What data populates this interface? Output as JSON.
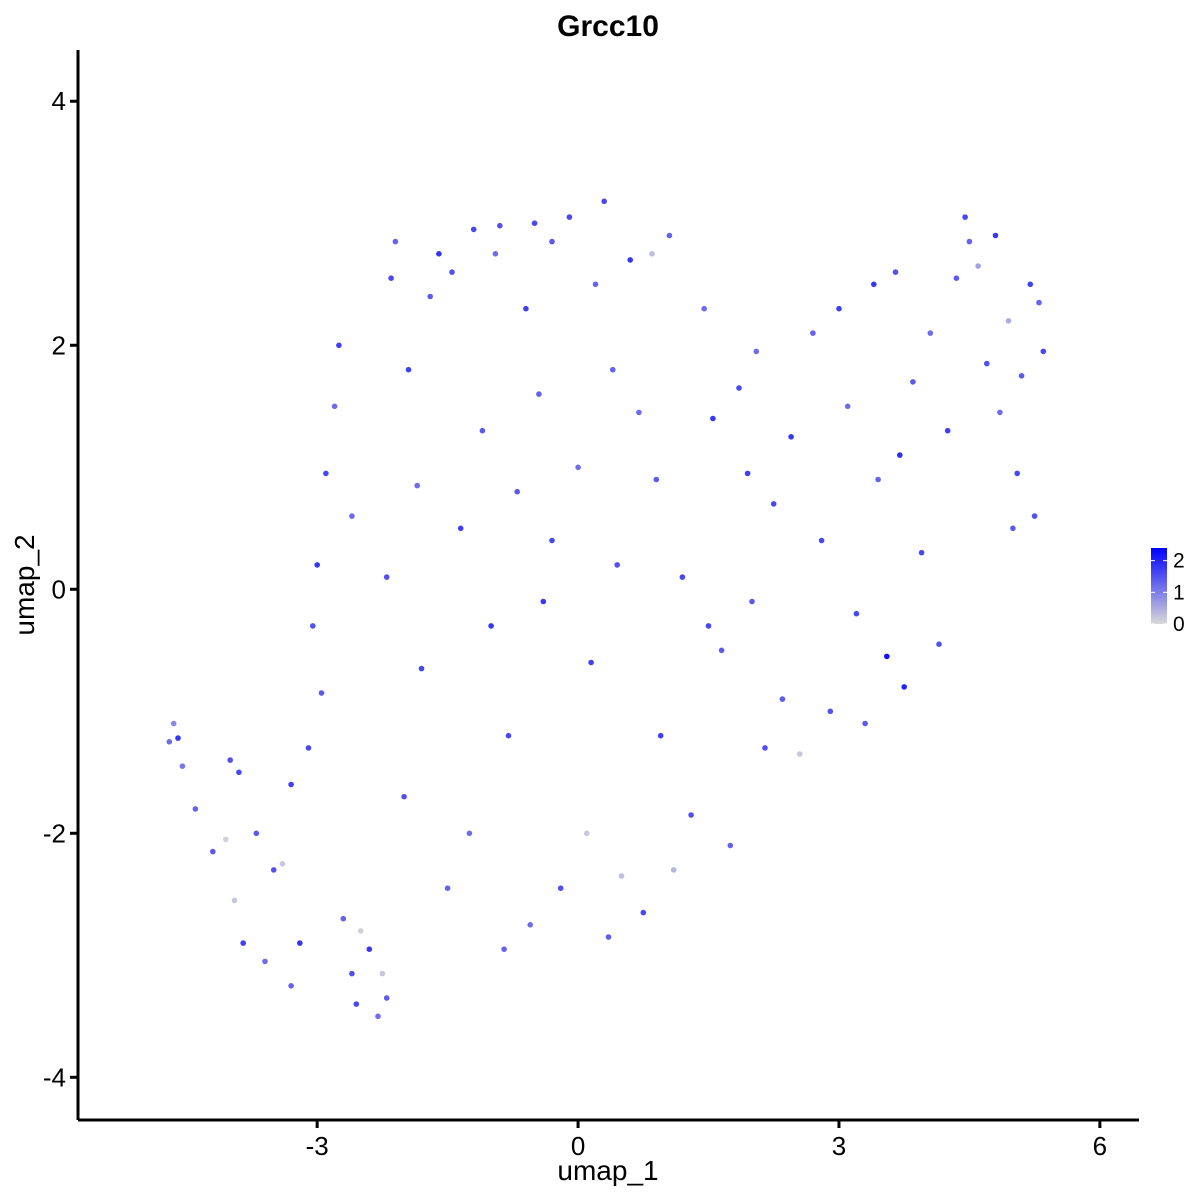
{
  "chart_data": {
    "type": "scatter",
    "title": "Grcc10",
    "xlabel": "umap_1",
    "ylabel": "umap_2",
    "xlim": [
      -5.75,
      6.45
    ],
    "ylim": [
      -4.35,
      4.42
    ],
    "x_ticks": [
      -3,
      0,
      3,
      6
    ],
    "y_ticks": [
      -4,
      -2,
      0,
      2,
      4
    ],
    "x_tick_labels": [
      "-3",
      "0",
      "3",
      "6"
    ],
    "y_tick_labels": [
      "-4",
      "-2",
      "0",
      "2",
      "4"
    ],
    "grid": false,
    "legend": {
      "placement": "right",
      "type": "colorbar",
      "range": [
        0,
        2.4
      ],
      "ticks": [
        0,
        1,
        2
      ],
      "labels": [
        "0",
        "1",
        "2"
      ],
      "colors": {
        "low": "#d9d9d9",
        "high": "#0000ff"
      }
    },
    "point_color_variable": "expression",
    "points_note_values": "approximate coordinates (umap_1, umap_2, expression)",
    "points": [
      [
        -4.7,
        -1.25,
        1.2
      ],
      [
        -4.65,
        -1.1,
        0.9
      ],
      [
        -4.6,
        -1.22,
        1.8
      ],
      [
        -4.55,
        -1.45,
        1.1
      ],
      [
        -4.4,
        -1.8,
        1.3
      ],
      [
        -4.2,
        -2.15,
        1.4
      ],
      [
        -4.05,
        -2.05,
        0.1
      ],
      [
        -3.95,
        -2.55,
        0.2
      ],
      [
        -3.9,
        -1.5,
        1.6
      ],
      [
        -3.85,
        -2.9,
        1.7
      ],
      [
        -3.6,
        -3.05,
        1.2
      ],
      [
        -3.5,
        -2.3,
        1.5
      ],
      [
        -3.4,
        -2.25,
        0.2
      ],
      [
        -3.3,
        -3.25,
        1.3
      ],
      [
        -3.2,
        -2.9,
        1.8
      ],
      [
        -3.1,
        -1.3,
        1.6
      ],
      [
        -3.05,
        -0.3,
        1.5
      ],
      [
        -3.0,
        0.2,
        1.8
      ],
      [
        -2.95,
        -0.85,
        1.4
      ],
      [
        -2.9,
        0.95,
        1.6
      ],
      [
        -2.8,
        1.5,
        1.2
      ],
      [
        -2.75,
        2.0,
        1.7
      ],
      [
        -2.7,
        -2.7,
        1.3
      ],
      [
        -2.6,
        -3.15,
        1.5
      ],
      [
        -2.55,
        -3.4,
        1.6
      ],
      [
        -2.5,
        -2.8,
        0.1
      ],
      [
        -2.4,
        -2.95,
        1.8
      ],
      [
        -2.3,
        -3.5,
        1.2
      ],
      [
        -2.25,
        -3.15,
        0.2
      ],
      [
        -2.2,
        -3.35,
        1.4
      ],
      [
        -2.15,
        2.55,
        1.6
      ],
      [
        -2.1,
        2.85,
        1.3
      ],
      [
        -2.0,
        -1.7,
        1.5
      ],
      [
        -1.95,
        1.8,
        1.7
      ],
      [
        -1.85,
        0.85,
        1.2
      ],
      [
        -1.8,
        -0.65,
        1.6
      ],
      [
        -1.7,
        2.4,
        1.4
      ],
      [
        -1.6,
        2.75,
        1.8
      ],
      [
        -1.5,
        -2.45,
        1.3
      ],
      [
        -1.45,
        2.6,
        1.5
      ],
      [
        -1.35,
        0.5,
        1.7
      ],
      [
        -1.25,
        -2.0,
        1.2
      ],
      [
        -1.2,
        2.95,
        1.6
      ],
      [
        -1.1,
        1.3,
        1.4
      ],
      [
        -1.0,
        -0.3,
        1.8
      ],
      [
        -0.95,
        2.75,
        1.2
      ],
      [
        -0.9,
        2.98,
        1.5
      ],
      [
        -0.85,
        -2.95,
        1.3
      ],
      [
        -0.8,
        -1.2,
        1.6
      ],
      [
        -0.7,
        0.8,
        1.4
      ],
      [
        -0.6,
        2.3,
        1.7
      ],
      [
        -0.55,
        -2.75,
        1.2
      ],
      [
        -0.5,
        3.0,
        1.6
      ],
      [
        -0.45,
        1.6,
        1.3
      ],
      [
        -0.4,
        -0.1,
        1.8
      ],
      [
        -0.3,
        2.85,
        1.4
      ],
      [
        -0.2,
        -2.45,
        1.5
      ],
      [
        -0.1,
        3.05,
        1.6
      ],
      [
        0.0,
        1.0,
        1.2
      ],
      [
        0.1,
        -2.0,
        0.2
      ],
      [
        0.15,
        -0.6,
        1.7
      ],
      [
        0.2,
        2.5,
        1.3
      ],
      [
        0.3,
        3.18,
        1.6
      ],
      [
        0.35,
        -2.85,
        1.4
      ],
      [
        0.45,
        0.2,
        1.5
      ],
      [
        0.5,
        -2.35,
        0.3
      ],
      [
        0.6,
        2.7,
        1.8
      ],
      [
        0.7,
        1.45,
        1.2
      ],
      [
        0.75,
        -2.65,
        1.6
      ],
      [
        0.85,
        2.75,
        0.3
      ],
      [
        0.9,
        0.9,
        1.4
      ],
      [
        0.95,
        -1.2,
        1.7
      ],
      [
        1.05,
        2.9,
        1.3
      ],
      [
        1.1,
        -2.3,
        0.4
      ],
      [
        1.2,
        0.1,
        1.6
      ],
      [
        1.3,
        -1.85,
        1.5
      ],
      [
        1.45,
        2.3,
        1.2
      ],
      [
        1.55,
        1.4,
        1.8
      ],
      [
        1.65,
        -0.5,
        1.4
      ],
      [
        1.75,
        -2.1,
        1.3
      ],
      [
        1.85,
        1.65,
        1.6
      ],
      [
        1.95,
        0.95,
        1.7
      ],
      [
        2.05,
        1.95,
        1.2
      ],
      [
        2.15,
        -1.3,
        1.5
      ],
      [
        2.25,
        0.7,
        1.6
      ],
      [
        2.35,
        -0.9,
        1.4
      ],
      [
        2.45,
        1.25,
        1.8
      ],
      [
        2.55,
        -1.35,
        0.2
      ],
      [
        2.7,
        2.1,
        1.3
      ],
      [
        2.8,
        0.4,
        1.6
      ],
      [
        2.9,
        -1.0,
        1.5
      ],
      [
        3.0,
        2.3,
        1.7
      ],
      [
        3.1,
        1.5,
        1.2
      ],
      [
        3.2,
        -0.2,
        1.6
      ],
      [
        3.3,
        -1.1,
        1.4
      ],
      [
        3.4,
        2.5,
        1.8
      ],
      [
        3.45,
        0.9,
        1.3
      ],
      [
        3.55,
        -0.55,
        2.2
      ],
      [
        3.65,
        2.6,
        1.5
      ],
      [
        3.75,
        -0.8,
        2.0
      ],
      [
        3.85,
        1.7,
        1.4
      ],
      [
        3.95,
        0.3,
        1.6
      ],
      [
        4.05,
        2.1,
        1.2
      ],
      [
        4.15,
        -0.45,
        1.5
      ],
      [
        4.25,
        1.3,
        1.7
      ],
      [
        4.35,
        2.55,
        1.4
      ],
      [
        4.45,
        3.05,
        1.6
      ],
      [
        4.5,
        2.85,
        1.3
      ],
      [
        4.6,
        2.65,
        0.6
      ],
      [
        4.7,
        1.85,
        1.5
      ],
      [
        4.8,
        2.9,
        1.8
      ],
      [
        4.85,
        1.45,
        1.2
      ],
      [
        4.95,
        2.2,
        0.5
      ],
      [
        5.05,
        0.95,
        1.6
      ],
      [
        5.1,
        1.75,
        1.4
      ],
      [
        5.2,
        2.5,
        1.7
      ],
      [
        5.25,
        0.6,
        1.5
      ],
      [
        5.3,
        2.35,
        1.3
      ],
      [
        5.35,
        1.95,
        1.6
      ],
      [
        5.0,
        0.5,
        1.4
      ],
      [
        3.7,
        1.1,
        1.9
      ],
      [
        2.0,
        -0.1,
        1.4
      ],
      [
        1.5,
        -0.3,
        1.6
      ],
      [
        -2.2,
        0.1,
        1.5
      ],
      [
        -2.6,
        0.6,
        1.2
      ],
      [
        -3.3,
        -1.6,
        1.7
      ],
      [
        -3.7,
        -2.0,
        1.4
      ],
      [
        -4.0,
        -1.4,
        1.5
      ],
      [
        -0.3,
        0.4,
        1.6
      ],
      [
        0.4,
        1.8,
        1.3
      ]
    ]
  }
}
